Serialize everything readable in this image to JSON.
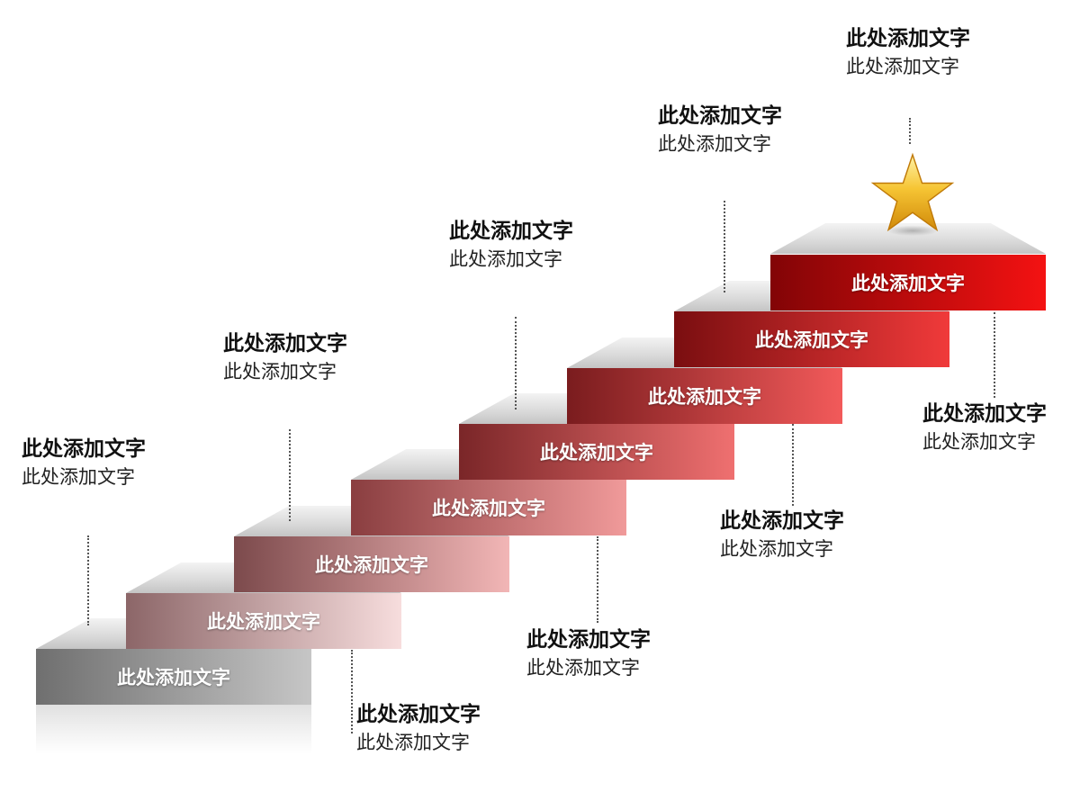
{
  "steps": [
    {
      "label": "此处添加文字",
      "color_left": "#6f6f6f",
      "color_right": "#c6c6c6"
    },
    {
      "label": "此处添加文字",
      "color_left": "#8c6668",
      "color_right": "#f7dddd"
    },
    {
      "label": "此处添加文字",
      "color_left": "#7c4a4c",
      "color_right": "#f2b6b6"
    },
    {
      "label": "此处添加文字",
      "color_left": "#8a3e40",
      "color_right": "#f09a9a"
    },
    {
      "label": "此处添加文字",
      "color_left": "#7a2628",
      "color_right": "#ef7070"
    },
    {
      "label": "此处添加文字",
      "color_left": "#7a1c1e",
      "color_right": "#f25a5a"
    },
    {
      "label": "此处添加文字",
      "color_left": "#7a0e10",
      "color_right": "#f03a3a"
    },
    {
      "label": "此处添加文字",
      "color_left": "#820406",
      "color_right": "#f41212"
    }
  ],
  "callouts": [
    {
      "title": "此处添加文字",
      "text": "此处添加文字"
    },
    {
      "title": "此处添加文字",
      "text": "此处添加文字"
    },
    {
      "title": "此处添加文字",
      "text": "此处添加文字"
    },
    {
      "title": "此处添加文字",
      "text": "此处添加文字"
    },
    {
      "title": "此处添加文字",
      "text": "此处添加文字"
    },
    {
      "title": "此处添加文字",
      "text": "此处添加文字"
    },
    {
      "title": "此处添加文字",
      "text": "此处添加文字"
    },
    {
      "title": "此处添加文字",
      "text": "此处添加文字"
    },
    {
      "title": "此处添加文字",
      "text": "此处添加文字"
    },
    {
      "title": "此处添加文字",
      "text": "此处添加文字"
    }
  ],
  "star_icon": "star-icon",
  "star_color": "#f2b419"
}
